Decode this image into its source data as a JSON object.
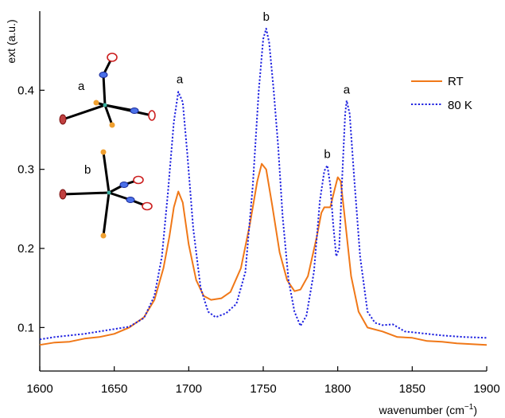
{
  "chart_data": {
    "type": "line",
    "xlabel": "wavenumber (cm",
    "xlabel_sup": "−1",
    "xlabel_close": ")",
    "ylabel": "ext (a.u.)",
    "xlim": [
      1600,
      1900
    ],
    "ylim": [
      0.045,
      0.5
    ],
    "xticks": [
      "1600",
      "1650",
      "1700",
      "1750",
      "1800",
      "1850",
      "1900"
    ],
    "yticks": [
      "0.1",
      "0.2",
      "0.3",
      "0.4"
    ],
    "grid": false,
    "legend_position": "top-right",
    "series": [
      {
        "name": "RT",
        "color": "#f07818",
        "style": "solid",
        "points": [
          [
            1600,
            0.078
          ],
          [
            1610,
            0.081
          ],
          [
            1620,
            0.082
          ],
          [
            1630,
            0.086
          ],
          [
            1640,
            0.088
          ],
          [
            1650,
            0.092
          ],
          [
            1660,
            0.1
          ],
          [
            1670,
            0.113
          ],
          [
            1677,
            0.135
          ],
          [
            1683,
            0.175
          ],
          [
            1687,
            0.215
          ],
          [
            1690,
            0.252
          ],
          [
            1693,
            0.272
          ],
          [
            1696,
            0.258
          ],
          [
            1700,
            0.205
          ],
          [
            1705,
            0.16
          ],
          [
            1710,
            0.14
          ],
          [
            1715,
            0.135
          ],
          [
            1722,
            0.137
          ],
          [
            1728,
            0.145
          ],
          [
            1735,
            0.175
          ],
          [
            1741,
            0.23
          ],
          [
            1746,
            0.285
          ],
          [
            1749,
            0.307
          ],
          [
            1752,
            0.3
          ],
          [
            1756,
            0.255
          ],
          [
            1761,
            0.195
          ],
          [
            1766,
            0.16
          ],
          [
            1771,
            0.146
          ],
          [
            1775,
            0.148
          ],
          [
            1780,
            0.165
          ],
          [
            1786,
            0.215
          ],
          [
            1789,
            0.245
          ],
          [
            1791,
            0.252
          ],
          [
            1795,
            0.252
          ],
          [
            1798,
            0.275
          ],
          [
            1800,
            0.29
          ],
          [
            1802,
            0.285
          ],
          [
            1805,
            0.235
          ],
          [
            1809,
            0.165
          ],
          [
            1814,
            0.12
          ],
          [
            1820,
            0.1
          ],
          [
            1830,
            0.095
          ],
          [
            1840,
            0.088
          ],
          [
            1850,
            0.087
          ],
          [
            1860,
            0.083
          ],
          [
            1870,
            0.082
          ],
          [
            1880,
            0.08
          ],
          [
            1890,
            0.079
          ],
          [
            1900,
            0.078
          ]
        ]
      },
      {
        "name": "80 K",
        "color": "#1f22e0",
        "style": "dotted",
        "points": [
          [
            1600,
            0.085
          ],
          [
            1610,
            0.088
          ],
          [
            1620,
            0.09
          ],
          [
            1630,
            0.092
          ],
          [
            1640,
            0.095
          ],
          [
            1650,
            0.098
          ],
          [
            1660,
            0.101
          ],
          [
            1670,
            0.112
          ],
          [
            1677,
            0.14
          ],
          [
            1682,
            0.19
          ],
          [
            1686,
            0.27
          ],
          [
            1690,
            0.36
          ],
          [
            1693,
            0.398
          ],
          [
            1696,
            0.385
          ],
          [
            1699,
            0.32
          ],
          [
            1703,
            0.225
          ],
          [
            1708,
            0.15
          ],
          [
            1713,
            0.12
          ],
          [
            1718,
            0.113
          ],
          [
            1725,
            0.118
          ],
          [
            1732,
            0.13
          ],
          [
            1738,
            0.17
          ],
          [
            1743,
            0.28
          ],
          [
            1747,
            0.4
          ],
          [
            1750,
            0.465
          ],
          [
            1752,
            0.478
          ],
          [
            1754,
            0.46
          ],
          [
            1757,
            0.4
          ],
          [
            1760,
            0.33
          ],
          [
            1763,
            0.24
          ],
          [
            1767,
            0.16
          ],
          [
            1771,
            0.12
          ],
          [
            1775,
            0.102
          ],
          [
            1779,
            0.115
          ],
          [
            1784,
            0.17
          ],
          [
            1788,
            0.26
          ],
          [
            1791,
            0.298
          ],
          [
            1793,
            0.305
          ],
          [
            1795,
            0.28
          ],
          [
            1797,
            0.23
          ],
          [
            1799,
            0.19
          ],
          [
            1801,
            0.2
          ],
          [
            1803,
            0.29
          ],
          [
            1805,
            0.37
          ],
          [
            1806,
            0.387
          ],
          [
            1808,
            0.37
          ],
          [
            1811,
            0.29
          ],
          [
            1815,
            0.19
          ],
          [
            1820,
            0.12
          ],
          [
            1825,
            0.106
          ],
          [
            1830,
            0.103
          ],
          [
            1837,
            0.104
          ],
          [
            1845,
            0.095
          ],
          [
            1855,
            0.093
          ],
          [
            1870,
            0.09
          ],
          [
            1885,
            0.088
          ],
          [
            1900,
            0.087
          ]
        ]
      }
    ],
    "annotations": [
      {
        "text": "a",
        "x": 1694,
        "y": 0.405
      },
      {
        "text": "b",
        "x": 1752,
        "y": 0.484
      },
      {
        "text": "b",
        "x": 1793,
        "y": 0.31
      },
      {
        "text": "a",
        "x": 1806,
        "y": 0.392
      }
    ],
    "inset_labels": [
      "a",
      "b"
    ]
  }
}
